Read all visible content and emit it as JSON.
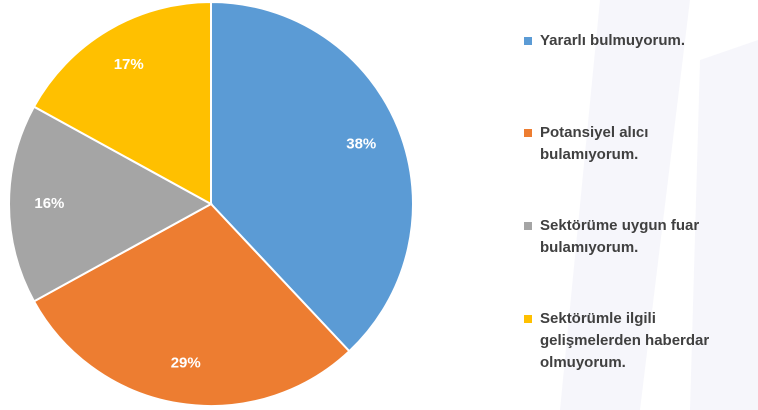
{
  "chart_data": {
    "type": "pie",
    "categories": [
      "Yararlı bulmuyorum.",
      "Potansiyel alıcı bulamıyorum.",
      "Sektörüme uygun fuar bulamıyorum.",
      "Sektörümle ilgili gelişmelerden haberdar olmuyorum."
    ],
    "values": [
      38,
      29,
      16,
      17
    ],
    "value_labels": [
      "38%",
      "29%",
      "16%",
      "17%"
    ],
    "colors": [
      "#5b9bd5",
      "#ed7d31",
      "#a5a5a5",
      "#ffc000"
    ],
    "legend": "right"
  }
}
